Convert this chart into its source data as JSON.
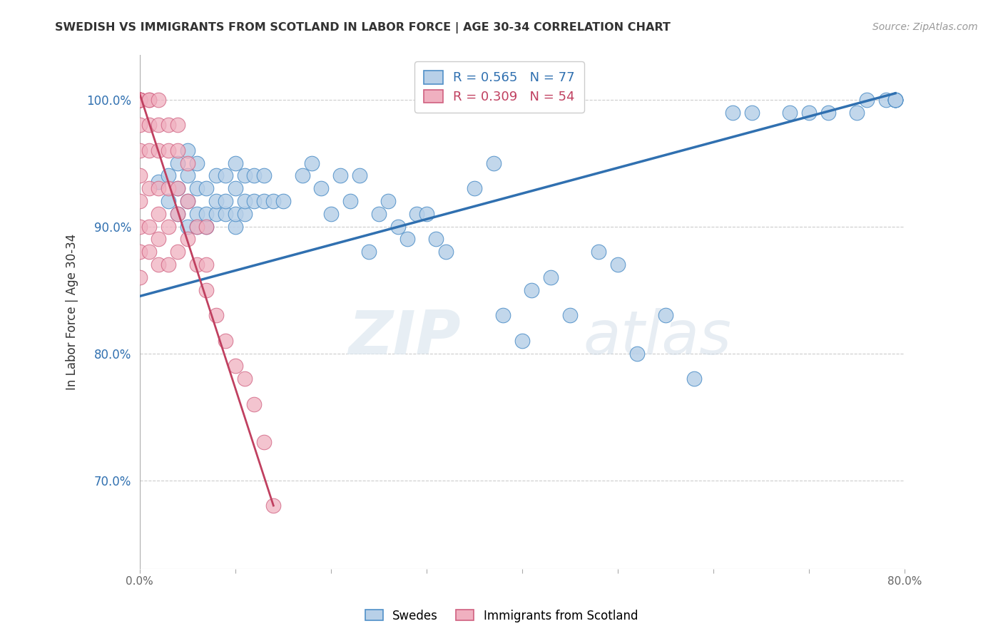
{
  "title": "SWEDISH VS IMMIGRANTS FROM SCOTLAND IN LABOR FORCE | AGE 30-34 CORRELATION CHART",
  "source": "Source: ZipAtlas.com",
  "ylabel": "In Labor Force | Age 30-34",
  "xlim": [
    0.0,
    0.8
  ],
  "ylim": [
    0.63,
    1.035
  ],
  "xticks": [
    0.0,
    0.1,
    0.2,
    0.3,
    0.4,
    0.5,
    0.6,
    0.7,
    0.8
  ],
  "xticklabels": [
    "0.0%",
    "",
    "",
    "",
    "",
    "",
    "",
    "",
    "80.0%"
  ],
  "yticks": [
    0.7,
    0.8,
    0.9,
    1.0
  ],
  "yticklabels": [
    "70.0%",
    "80.0%",
    "90.0%",
    "100.0%"
  ],
  "blue_R": 0.565,
  "blue_N": 77,
  "pink_R": 0.309,
  "pink_N": 54,
  "blue_color": "#b8d0e8",
  "blue_edge_color": "#5090c8",
  "blue_line_color": "#3070b0",
  "pink_color": "#f0b0c0",
  "pink_edge_color": "#d06080",
  "pink_line_color": "#c04060",
  "watermark_zip": "ZIP",
  "watermark_atlas": "atlas",
  "legend_label_blue": "Swedes",
  "legend_label_pink": "Immigrants from Scotland",
  "blue_scatter_x": [
    0.02,
    0.03,
    0.03,
    0.04,
    0.04,
    0.04,
    0.05,
    0.05,
    0.05,
    0.05,
    0.06,
    0.06,
    0.06,
    0.06,
    0.07,
    0.07,
    0.07,
    0.08,
    0.08,
    0.08,
    0.09,
    0.09,
    0.09,
    0.1,
    0.1,
    0.1,
    0.1,
    0.11,
    0.11,
    0.11,
    0.12,
    0.12,
    0.13,
    0.13,
    0.14,
    0.15,
    0.17,
    0.18,
    0.19,
    0.2,
    0.21,
    0.22,
    0.23,
    0.24,
    0.25,
    0.26,
    0.27,
    0.28,
    0.29,
    0.3,
    0.31,
    0.32,
    0.35,
    0.37,
    0.38,
    0.4,
    0.41,
    0.43,
    0.45,
    0.48,
    0.5,
    0.52,
    0.55,
    0.58,
    0.62,
    0.64,
    0.68,
    0.7,
    0.72,
    0.75,
    0.76,
    0.78,
    0.79,
    0.79,
    0.79,
    0.79,
    0.79
  ],
  "blue_scatter_y": [
    0.935,
    0.92,
    0.94,
    0.91,
    0.93,
    0.95,
    0.9,
    0.92,
    0.94,
    0.96,
    0.9,
    0.91,
    0.93,
    0.95,
    0.9,
    0.91,
    0.93,
    0.91,
    0.92,
    0.94,
    0.91,
    0.92,
    0.94,
    0.9,
    0.91,
    0.93,
    0.95,
    0.91,
    0.92,
    0.94,
    0.92,
    0.94,
    0.92,
    0.94,
    0.92,
    0.92,
    0.94,
    0.95,
    0.93,
    0.91,
    0.94,
    0.92,
    0.94,
    0.88,
    0.91,
    0.92,
    0.9,
    0.89,
    0.91,
    0.91,
    0.89,
    0.88,
    0.93,
    0.95,
    0.83,
    0.81,
    0.85,
    0.86,
    0.83,
    0.88,
    0.87,
    0.8,
    0.83,
    0.78,
    0.99,
    0.99,
    0.99,
    0.99,
    0.99,
    0.99,
    1.0,
    1.0,
    1.0,
    1.0,
    1.0,
    1.0,
    1.0
  ],
  "pink_scatter_x": [
    0.0,
    0.0,
    0.0,
    0.0,
    0.0,
    0.0,
    0.0,
    0.0,
    0.0,
    0.0,
    0.0,
    0.0,
    0.0,
    0.0,
    0.0,
    0.01,
    0.01,
    0.01,
    0.01,
    0.01,
    0.01,
    0.01,
    0.02,
    0.02,
    0.02,
    0.02,
    0.02,
    0.02,
    0.02,
    0.03,
    0.03,
    0.03,
    0.03,
    0.03,
    0.04,
    0.04,
    0.04,
    0.04,
    0.04,
    0.05,
    0.05,
    0.05,
    0.06,
    0.06,
    0.07,
    0.07,
    0.07,
    0.08,
    0.09,
    0.1,
    0.11,
    0.12,
    0.13,
    0.14
  ],
  "pink_scatter_y": [
    0.86,
    0.88,
    0.9,
    0.92,
    0.94,
    0.96,
    0.98,
    1.0,
    1.0,
    1.0,
    1.0,
    1.0,
    1.0,
    1.0,
    1.0,
    0.88,
    0.9,
    0.93,
    0.96,
    0.98,
    1.0,
    1.0,
    0.87,
    0.89,
    0.91,
    0.93,
    0.96,
    0.98,
    1.0,
    0.87,
    0.9,
    0.93,
    0.96,
    0.98,
    0.88,
    0.91,
    0.93,
    0.96,
    0.98,
    0.89,
    0.92,
    0.95,
    0.87,
    0.9,
    0.85,
    0.87,
    0.9,
    0.83,
    0.81,
    0.79,
    0.78,
    0.76,
    0.73,
    0.68
  ],
  "blue_trend_x": [
    0.0,
    0.79
  ],
  "blue_trend_y": [
    0.845,
    1.005
  ],
  "pink_trend_x": [
    0.0,
    0.14
  ],
  "pink_trend_y": [
    1.005,
    0.68
  ]
}
